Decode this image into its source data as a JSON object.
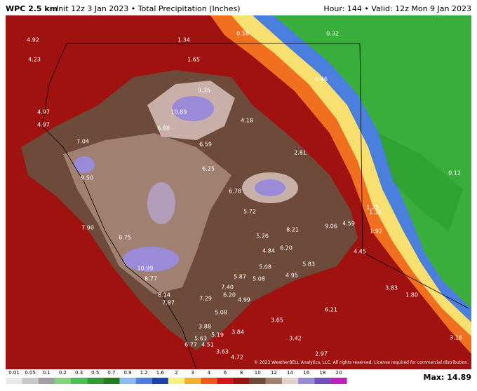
{
  "header": {
    "model": "WPC 2.5 km",
    "init": "Init 12z 3 Jan 2023 • Total Precipitation (Inches)",
    "valid": "Hour: 144 • Valid: 12z Mon 9 Jan 2023"
  },
  "map": {
    "labels": [
      "4.92",
      "1.34",
      "0.58",
      "0.32",
      "4.23",
      "1.65",
      "0.46",
      "9.35",
      "10.89",
      "4.97",
      "4.97",
      "6.88",
      "4.18",
      "7.04",
      "6.59",
      "2.81",
      "6.25",
      "0.12",
      "9.50",
      "6.78",
      "1.35",
      "1.35",
      "5.72",
      "4.59",
      "7.90",
      "8.21",
      "9.06",
      "1.92",
      "5.26",
      "8.75",
      "6.20",
      "4.84",
      "4.45",
      "5.83",
      "5.08",
      "10.99",
      "5.87",
      "4.95",
      "5.08",
      "8.77",
      "3.83",
      "7.40",
      "1.80",
      "8.14",
      "6.20",
      "7.29",
      "4.99",
      "7.87",
      "5.08",
      "6.21",
      "3.65",
      "3.88",
      "3.84",
      "5.19",
      "5.63",
      "3.42",
      "3.16",
      "6.77",
      "4.51",
      "3.63",
      "2.97",
      "4.72"
    ],
    "copyright": "© 2023 WeatherBELL Analytics, LLC. All rights reserved. License required for commercial distribution."
  },
  "legend": [
    {
      "label": "0.01",
      "color": "#e8e8e8"
    },
    {
      "label": "0.05",
      "color": "#c8c8c8"
    },
    {
      "label": "0.1",
      "color": "#a0a0a0"
    },
    {
      "label": "0.2",
      "color": "#7fd67f"
    },
    {
      "label": "0.3",
      "color": "#4cc04c"
    },
    {
      "label": "0.5",
      "color": "#2e9e2e"
    },
    {
      "label": "0.7",
      "color": "#1f7f1f"
    },
    {
      "label": "0.9",
      "color": "#8fb8ef"
    },
    {
      "label": "1.2",
      "color": "#4a7fe0"
    },
    {
      "label": "1.6",
      "color": "#2040b0"
    },
    {
      "label": "2",
      "color": "#f7f07a"
    },
    {
      "label": "3",
      "color": "#f5b030"
    },
    {
      "label": "4",
      "color": "#ef5a1a"
    },
    {
      "label": "6",
      "color": "#d01818"
    },
    {
      "label": "8",
      "color": "#9c1010"
    },
    {
      "label": "10",
      "color": "#6e4a3a"
    },
    {
      "label": "12",
      "color": "#a08070"
    },
    {
      "label": "14",
      "color": "#e0d0cc"
    },
    {
      "label": "16",
      "color": "#9a8ad8"
    },
    {
      "label": "18",
      "color": "#7050c0"
    },
    {
      "label": "20",
      "color": "#c020c0"
    }
  ],
  "max": "Max: 14.89"
}
